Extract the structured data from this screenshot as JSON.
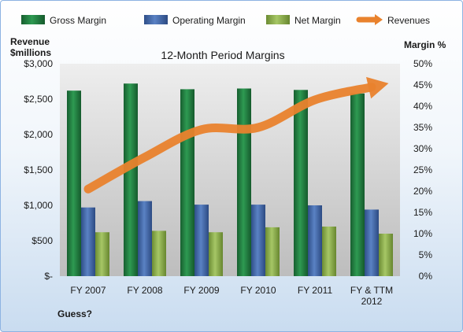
{
  "chart_data": {
    "type": "bar",
    "title": "12-Month Period Margins",
    "categories": [
      "FY 2007",
      "FY 2008",
      "FY 2009",
      "FY 2010",
      "FY 2011",
      "FY & TTM 2012"
    ],
    "series": [
      {
        "name": "Gross Margin",
        "axis": "left",
        "values": [
          2620,
          2720,
          2640,
          2650,
          2630,
          2580
        ]
      },
      {
        "name": "Operating Margin",
        "axis": "left",
        "values": [
          970,
          1060,
          1010,
          1010,
          1000,
          940
        ]
      },
      {
        "name": "Net Margin",
        "axis": "left",
        "values": [
          620,
          640,
          620,
          690,
          700,
          600
        ]
      },
      {
        "name": "Revenues",
        "axis": "right",
        "type": "line",
        "values": [
          20.5,
          28,
          34.5,
          35,
          41.5,
          44.5
        ]
      }
    ],
    "y_left": {
      "label_lines": [
        "Revenue",
        "$millions"
      ],
      "ylim": [
        0,
        3000
      ],
      "ticks": [
        0,
        500,
        1000,
        1500,
        2000,
        2500,
        3000
      ],
      "tick_labels": [
        "$-",
        "$500",
        "$1,000",
        "$1,500",
        "$2,000",
        "$2,500",
        "$3,000"
      ]
    },
    "y_right": {
      "label": "Margin %",
      "ylim": [
        0,
        50
      ],
      "ticks": [
        0,
        5,
        10,
        15,
        20,
        25,
        30,
        35,
        40,
        45,
        50
      ],
      "tick_labels": [
        "0%",
        "5%",
        "10%",
        "15%",
        "20%",
        "25%",
        "30%",
        "35%",
        "40%",
        "45%",
        "50%"
      ]
    },
    "category_labels": [
      [
        "FY 2007"
      ],
      [
        "FY 2008"
      ],
      [
        "FY 2009"
      ],
      [
        "FY 2010"
      ],
      [
        "FY 2011"
      ],
      [
        "FY & TTM",
        "2012"
      ]
    ],
    "legend_position": "top",
    "grid": false,
    "annotation": "Guess?",
    "colors": {
      "Gross Margin": "#1e7a3c",
      "Operating Margin": "#3f66a8",
      "Net Margin": "#8db04a",
      "Revenues": "#e9822d",
      "plot_background": "#d0d0d0"
    }
  }
}
